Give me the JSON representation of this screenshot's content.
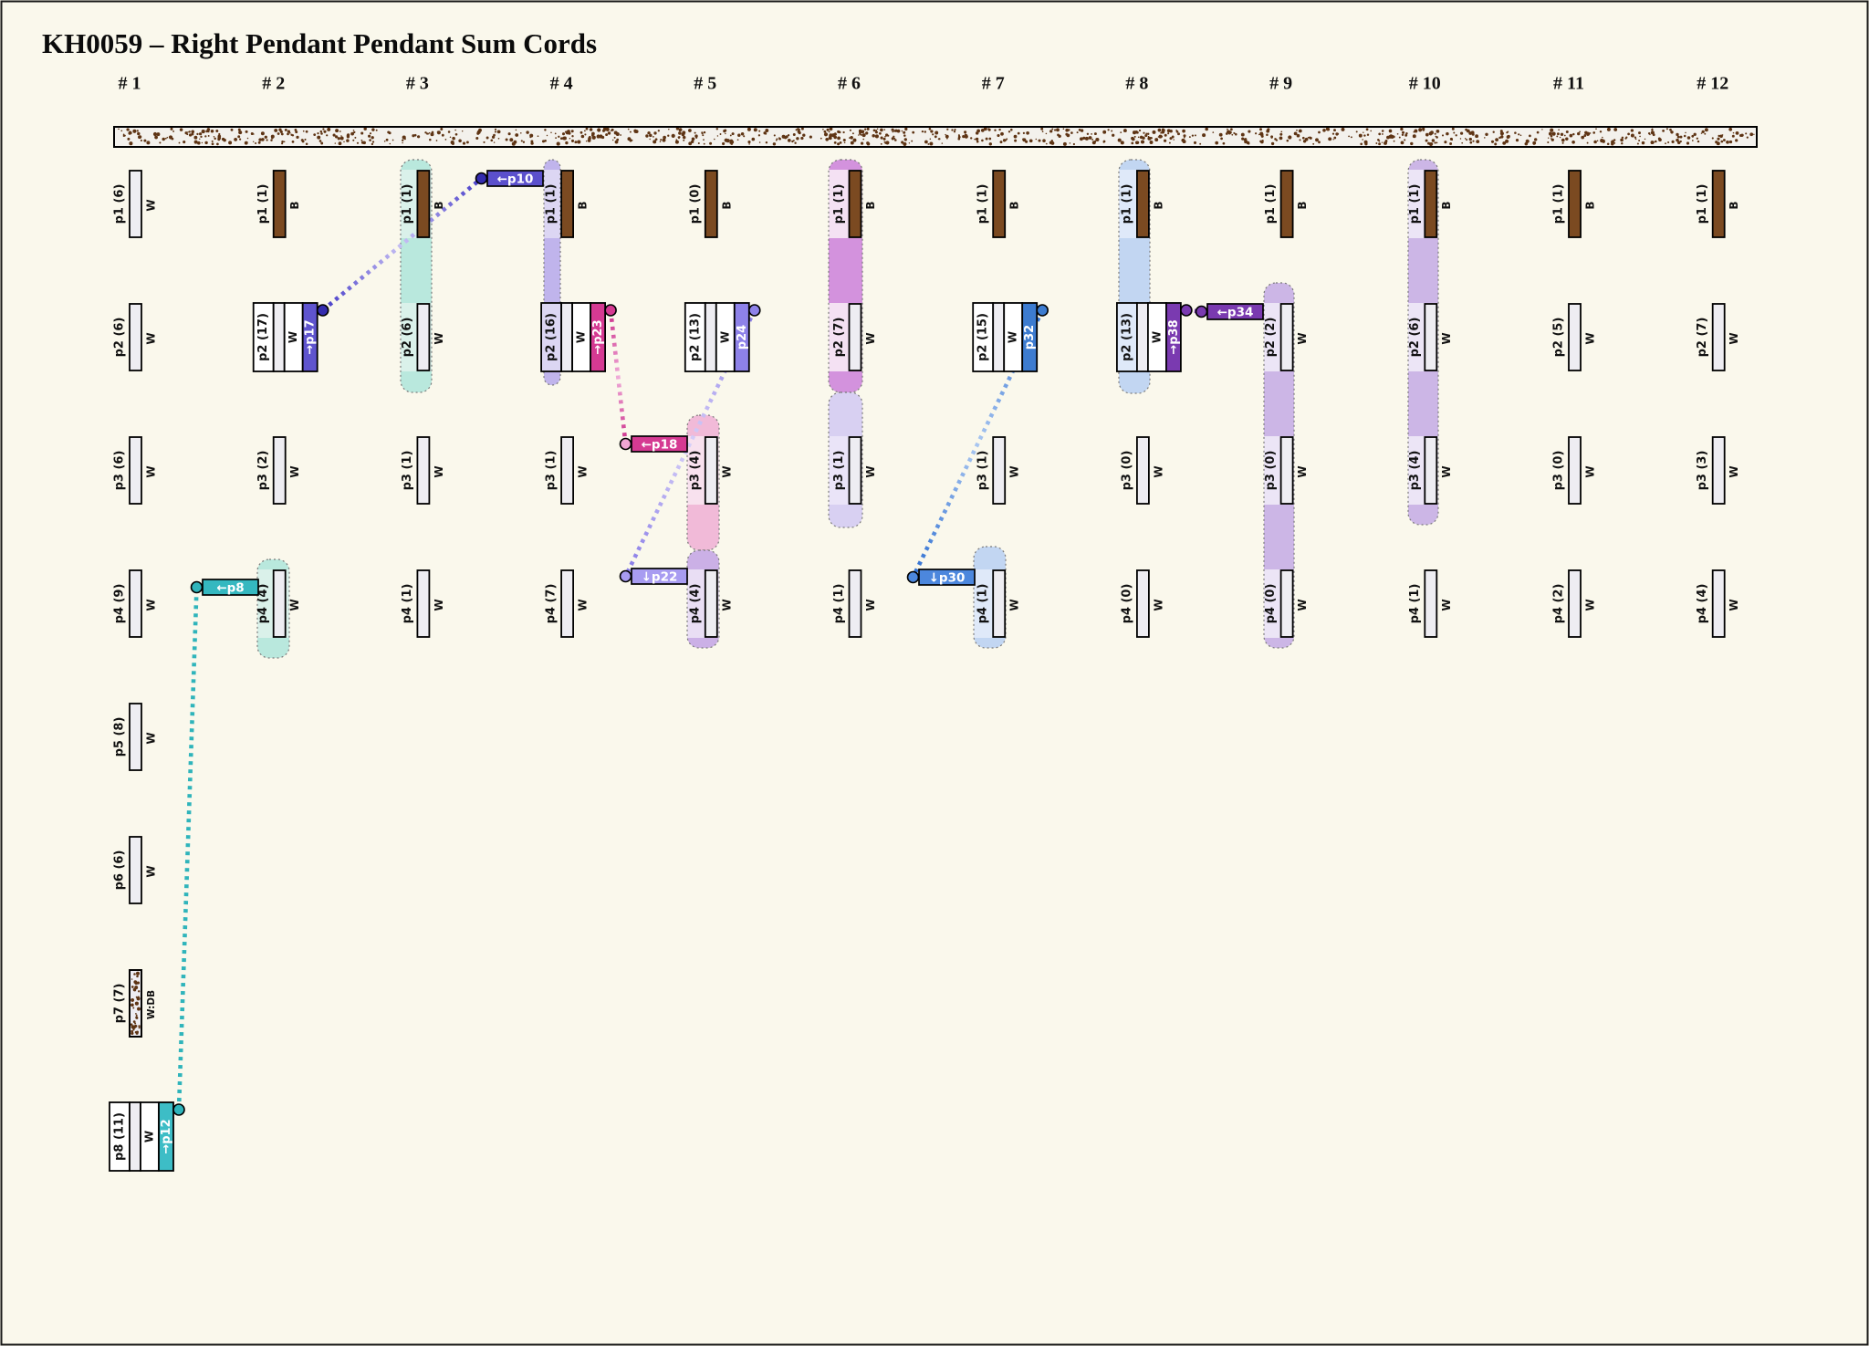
{
  "title": "KH0059 – Right Pendant Pendant Sum Cords",
  "colors": {
    "background": "#faf8ec",
    "cord_white": "#eeedf2",
    "cord_brown": "#7b4a21",
    "speckle": "#5e3414",
    "primary_fill": "#f3f1ec",
    "border": "#1a1a1a"
  },
  "band_colors": {
    "teal_band": [
      "#daf1ea",
      "#b9e8dd"
    ],
    "lavender_band": [
      "#dcd6f3",
      "#c0b4ec"
    ],
    "pink_band": [
      "#f8e1ee",
      "#f1bad8"
    ],
    "plum_band": [
      "#e9def4",
      "#cbb0e6"
    ],
    "orchid_band": [
      "#f4e1f3",
      "#d392dd"
    ],
    "periwinkle_band": [
      "#eae4f8",
      "#d8d0f2"
    ],
    "blue_band": [
      "#dfe9f9",
      "#c2d6f2"
    ],
    "purple_band": [
      "#ece5f6",
      "#ccb6e6"
    ]
  },
  "columns": [
    {
      "header": "# 1",
      "pendants": [
        {
          "id": "p1",
          "value": 6,
          "color": "W"
        },
        {
          "id": "p2",
          "value": 6,
          "color": "W"
        },
        {
          "id": "p3",
          "value": 6,
          "color": "W"
        },
        {
          "id": "p4",
          "value": 9,
          "color": "W"
        },
        {
          "id": "p5",
          "value": 8,
          "color": "W"
        },
        {
          "id": "p6",
          "value": 6,
          "color": "W"
        },
        {
          "id": "p7",
          "value": 7,
          "color": "W:DB"
        },
        {
          "id": "p8",
          "value": 11,
          "color": "W",
          "sum_cord": {
            "text": "→p12",
            "color": "#3dbdc6"
          }
        }
      ]
    },
    {
      "header": "# 2",
      "pendants": [
        {
          "id": "p1",
          "value": 1,
          "color": "B"
        },
        {
          "id": "p2",
          "value": 17,
          "color": "W",
          "sum_cord": {
            "text": "→p17",
            "color": "#5f54ce"
          }
        },
        {
          "id": "p3",
          "value": 2,
          "color": "W"
        },
        {
          "id": "p4",
          "value": 4,
          "color": "W"
        }
      ]
    },
    {
      "header": "# 3",
      "pendants": [
        {
          "id": "p1",
          "value": 1,
          "color": "B"
        },
        {
          "id": "p2",
          "value": 6,
          "color": "W"
        },
        {
          "id": "p3",
          "value": 1,
          "color": "W"
        },
        {
          "id": "p4",
          "value": 1,
          "color": "W"
        }
      ]
    },
    {
      "header": "# 4",
      "pendants": [
        {
          "id": "p1",
          "value": 1,
          "color": "B"
        },
        {
          "id": "p2",
          "value": 16,
          "color": "W",
          "sum_cord": {
            "text": "→p23",
            "color": "#d53a92"
          }
        },
        {
          "id": "p3",
          "value": 1,
          "color": "W"
        },
        {
          "id": "p4",
          "value": 7,
          "color": "W"
        }
      ]
    },
    {
      "header": "# 5",
      "pendants": [
        {
          "id": "p1",
          "value": 0,
          "color": "B"
        },
        {
          "id": "p2",
          "value": 13,
          "color": "W",
          "sum_cord": {
            "text": "p24",
            "color": "#8e82e9"
          }
        },
        {
          "id": "p3",
          "value": 4,
          "color": "W"
        },
        {
          "id": "p4",
          "value": 4,
          "color": "W"
        }
      ]
    },
    {
      "header": "# 6",
      "pendants": [
        {
          "id": "p1",
          "value": 1,
          "color": "B"
        },
        {
          "id": "p2",
          "value": 7,
          "color": "W"
        },
        {
          "id": "p3",
          "value": 1,
          "color": "W"
        },
        {
          "id": "p4",
          "value": 1,
          "color": "W"
        }
      ]
    },
    {
      "header": "# 7",
      "pendants": [
        {
          "id": "p1",
          "value": 1,
          "color": "B"
        },
        {
          "id": "p2",
          "value": 15,
          "color": "W",
          "sum_cord": {
            "text": "p32",
            "color": "#3d7cd0"
          }
        },
        {
          "id": "p3",
          "value": 1,
          "color": "W"
        },
        {
          "id": "p4",
          "value": 1,
          "color": "W"
        }
      ]
    },
    {
      "header": "# 8",
      "pendants": [
        {
          "id": "p1",
          "value": 1,
          "color": "B"
        },
        {
          "id": "p2",
          "value": 13,
          "color": "W",
          "sum_cord": {
            "text": "→p38",
            "color": "#7a3ab0"
          }
        },
        {
          "id": "p3",
          "value": 0,
          "color": "W"
        },
        {
          "id": "p4",
          "value": 0,
          "color": "W"
        }
      ]
    },
    {
      "header": "# 9",
      "pendants": [
        {
          "id": "p1",
          "value": 1,
          "color": "B"
        },
        {
          "id": "p2",
          "value": 2,
          "color": "W"
        },
        {
          "id": "p3",
          "value": 0,
          "color": "W"
        },
        {
          "id": "p4",
          "value": 0,
          "color": "W"
        }
      ]
    },
    {
      "header": "# 10",
      "pendants": [
        {
          "id": "p1",
          "value": 1,
          "color": "B"
        },
        {
          "id": "p2",
          "value": 6,
          "color": "W"
        },
        {
          "id": "p3",
          "value": 4,
          "color": "W"
        },
        {
          "id": "p4",
          "value": 1,
          "color": "W"
        }
      ]
    },
    {
      "header": "# 11",
      "pendants": [
        {
          "id": "p1",
          "value": 1,
          "color": "B"
        },
        {
          "id": "p2",
          "value": 5,
          "color": "W"
        },
        {
          "id": "p3",
          "value": 0,
          "color": "W"
        },
        {
          "id": "p4",
          "value": 2,
          "color": "W"
        }
      ]
    },
    {
      "header": "# 12",
      "pendants": [
        {
          "id": "p1",
          "value": 1,
          "color": "B"
        },
        {
          "id": "p2",
          "value": 7,
          "color": "W"
        },
        {
          "id": "p3",
          "value": 3,
          "color": "W"
        },
        {
          "id": "p4",
          "value": 4,
          "color": "W"
        }
      ]
    }
  ],
  "bands": [
    {
      "id": "b2",
      "column": 2,
      "rows": [
        4,
        4
      ],
      "color_key": "teal_band"
    },
    {
      "id": "b3",
      "column": 3,
      "rows": [
        1,
        2
      ],
      "color_key": "teal_band"
    },
    {
      "id": "b4",
      "column": 4,
      "rows": [
        1,
        2
      ],
      "color_key": "lavender_band"
    },
    {
      "id": "b5a",
      "column": 5,
      "rows": [
        3,
        3
      ],
      "color_key": "pink_band"
    },
    {
      "id": "b5b",
      "column": 5,
      "rows": [
        4,
        4
      ],
      "color_key": "plum_band"
    },
    {
      "id": "b6a",
      "column": 6,
      "rows": [
        1,
        2
      ],
      "color_key": "orchid_band"
    },
    {
      "id": "b6b",
      "column": 6,
      "rows": [
        3,
        3
      ],
      "color_key": "periwinkle_band"
    },
    {
      "id": "b7",
      "column": 7,
      "rows": [
        4,
        4
      ],
      "color_key": "blue_band"
    },
    {
      "id": "b8",
      "column": 8,
      "rows": [
        1,
        2
      ],
      "color_key": "blue_band"
    },
    {
      "id": "b9",
      "column": 9,
      "rows": [
        2,
        4
      ],
      "color_key": "purple_band"
    },
    {
      "id": "b10",
      "column": 10,
      "rows": [
        1,
        3
      ],
      "color_key": "purple_band"
    }
  ],
  "connectors": [
    {
      "from": {
        "column": 2,
        "row": 2
      },
      "sum_text": "→p17",
      "label_text": "←p10",
      "stroke_ends": "#443ac8",
      "stroke_mid": "#c7c0f4",
      "chip_color": "#5b50cc",
      "dot_from": "#342cae",
      "dot_to": "#342cae"
    },
    {
      "from": {
        "column": 1,
        "row": 8
      },
      "sum_text": "→p12",
      "label_text": "←p8",
      "stroke_ends": "#2fb4bb",
      "stroke_mid": null,
      "chip_color": "#35b8c0",
      "dot_from": "#2fb4bb",
      "dot_to": "#2fb4bb"
    },
    {
      "from": {
        "column": 4,
        "row": 2
      },
      "sum_text": "→p23",
      "label_text": "←p18",
      "stroke_ends": "#cc2f8a",
      "stroke_mid": "#efaad8",
      "chip_color": "#d53a92",
      "dot_from": "#d53a92",
      "dot_to": "#f0a6d4"
    },
    {
      "from": {
        "column": 5,
        "row": 2
      },
      "sum_text": "p24",
      "label_text": "↓p22",
      "stroke_ends": "#8578e6",
      "stroke_mid": "#d6cff8",
      "chip_color": "#a89cf1",
      "dot_from": "#8e82e9",
      "dot_to": "#a89cf1"
    },
    {
      "from": {
        "column": 7,
        "row": 2
      },
      "sum_text": "p32",
      "label_text": "↓p30",
      "stroke_ends": "#2e6fd2",
      "stroke_mid": "#a9c6f0",
      "chip_color": "#4c87dd",
      "dot_from": "#3d7cd0",
      "dot_to": "#4c87dd"
    },
    {
      "from": {
        "column": 8,
        "row": 2
      },
      "sum_text": "→p38",
      "label_text": "←p34",
      "stroke_ends": "#7a3ab0",
      "stroke_mid": null,
      "chip_color": "#7a3ab0",
      "dot_from": "#7a3ab0",
      "dot_to": "#7a3ab0"
    }
  ]
}
